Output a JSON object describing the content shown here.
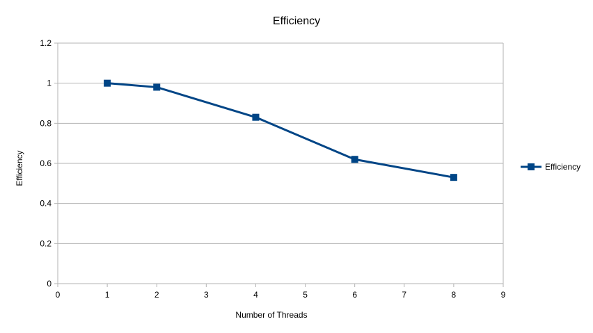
{
  "chart_data": {
    "type": "line",
    "title": "Efficiency",
    "xlabel": "Number of Threads",
    "ylabel": "Efficiency",
    "xlim": [
      0,
      9
    ],
    "ylim": [
      0,
      1.2
    ],
    "x_ticks": [
      0,
      1,
      2,
      3,
      4,
      5,
      6,
      7,
      8,
      9
    ],
    "y_ticks": [
      0,
      0.2,
      0.4,
      0.6,
      0.8,
      1,
      1.2
    ],
    "y_tick_labels": [
      "0",
      "0.2",
      "0.4",
      "0.6",
      "0.8",
      "1",
      "1.2"
    ],
    "grid": "horizontal",
    "legend_position": "right",
    "series": [
      {
        "name": "Efficiency",
        "color": "#004586",
        "marker": "square",
        "x": [
          1,
          2,
          4,
          6,
          8
        ],
        "y": [
          1.0,
          0.98,
          0.83,
          0.62,
          0.53
        ]
      }
    ]
  }
}
